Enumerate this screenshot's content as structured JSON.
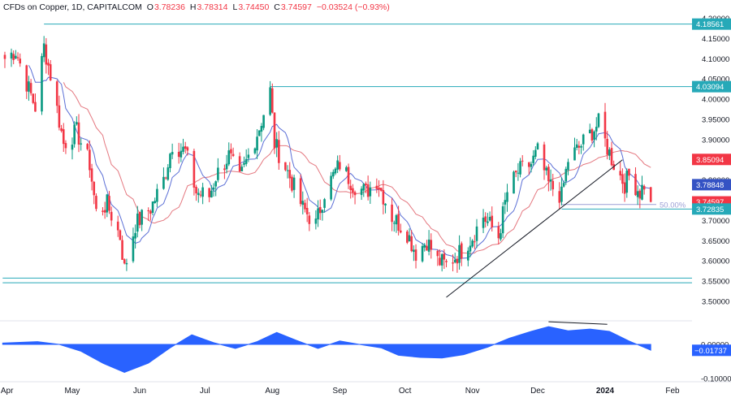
{
  "header": {
    "title": "CFDs on Copper, 1D, CAPITALCOM",
    "o_label": "O",
    "o_value": "3.78236",
    "h_label": "H",
    "h_value": "3.78314",
    "l_label": "L",
    "l_value": "3.74450",
    "c_label": "C",
    "c_value": "3.74597",
    "change": "−0.03524 (−0.93%)"
  },
  "colors": {
    "up": "#089981",
    "down": "#f23645",
    "ma_fast": "#5b6fd6",
    "ma_slow": "#e4777f",
    "level": "#26a9b8",
    "fib": "#9c9fd6",
    "oscillator": "#2962ff",
    "trendline": "#131722"
  },
  "chart_data": [
    {
      "type": "candlestick",
      "instrument": "CFDs on Copper",
      "timeframe": "1D",
      "price_axis": {
        "ylim": [
          3.455,
          4.21
        ],
        "ticks": [
          "4.20000",
          "4.15000",
          "4.10000",
          "4.05000",
          "4.00000",
          "3.95000",
          "3.90000",
          "3.85000",
          "3.80000",
          "3.75000",
          "3.70000",
          "3.65000",
          "3.60000",
          "3.55000",
          "3.50000"
        ]
      },
      "x_axis": {
        "ticks": [
          {
            "label": "Apr",
            "date": "2023-04-01"
          },
          {
            "label": "May",
            "date": "2023-05-01"
          },
          {
            "label": "Jun",
            "date": "2023-06-01"
          },
          {
            "label": "Jul",
            "date": "2023-07-01"
          },
          {
            "label": "Aug",
            "date": "2023-08-01"
          },
          {
            "label": "Sep",
            "date": "2023-09-01"
          },
          {
            "label": "Oct",
            "date": "2023-10-01"
          },
          {
            "label": "Nov",
            "date": "2023-11-01"
          },
          {
            "label": "Dec",
            "date": "2023-12-01"
          },
          {
            "label": "2024",
            "date": "2024-01-01"
          },
          {
            "label": "Feb",
            "date": "2024-02-01"
          }
        ],
        "range": [
          "2023-03-30",
          "2024-02-12"
        ]
      },
      "close_path": [
        [
          "2023-03-31",
          4.1
        ],
        [
          "2023-04-05",
          4.12
        ],
        [
          "2023-04-10",
          4.04
        ],
        [
          "2023-04-14",
          3.98
        ],
        [
          "2023-04-18",
          4.13
        ],
        [
          "2023-04-21",
          4.06
        ],
        [
          "2023-04-27",
          3.89
        ],
        [
          "2023-05-03",
          3.92
        ],
        [
          "2023-05-09",
          3.84
        ],
        [
          "2023-05-12",
          3.72
        ],
        [
          "2023-05-17",
          3.74
        ],
        [
          "2023-05-23",
          3.66
        ],
        [
          "2023-05-25",
          3.58
        ],
        [
          "2023-05-30",
          3.69
        ],
        [
          "2023-06-06",
          3.73
        ],
        [
          "2023-06-12",
          3.8
        ],
        [
          "2023-06-16",
          3.89
        ],
        [
          "2023-06-22",
          3.87
        ],
        [
          "2023-06-27",
          3.77
        ],
        [
          "2023-07-03",
          3.76
        ],
        [
          "2023-07-06",
          3.81
        ],
        [
          "2023-07-12",
          3.86
        ],
        [
          "2023-07-17",
          3.8
        ],
        [
          "2023-07-21",
          3.86
        ],
        [
          "2023-07-26",
          3.93
        ],
        [
          "2023-07-31",
          4.02
        ],
        [
          "2023-08-02",
          3.89
        ],
        [
          "2023-08-08",
          3.82
        ],
        [
          "2023-08-15",
          3.73
        ],
        [
          "2023-08-21",
          3.69
        ],
        [
          "2023-08-25",
          3.77
        ],
        [
          "2023-09-01",
          3.84
        ],
        [
          "2023-09-07",
          3.79
        ],
        [
          "2023-09-13",
          3.77
        ],
        [
          "2023-09-18",
          3.8
        ],
        [
          "2023-09-25",
          3.71
        ],
        [
          "2023-10-02",
          3.67
        ],
        [
          "2023-10-06",
          3.62
        ],
        [
          "2023-10-11",
          3.65
        ],
        [
          "2023-10-16",
          3.6
        ],
        [
          "2023-10-20",
          3.59
        ],
        [
          "2023-10-26",
          3.62
        ],
        [
          "2023-11-01",
          3.66
        ],
        [
          "2023-11-06",
          3.71
        ],
        [
          "2023-11-13",
          3.66
        ],
        [
          "2023-11-17",
          3.77
        ],
        [
          "2023-11-22",
          3.82
        ],
        [
          "2023-11-28",
          3.84
        ],
        [
          "2023-12-01",
          3.87
        ],
        [
          "2023-12-06",
          3.79
        ],
        [
          "2023-12-12",
          3.76
        ],
        [
          "2023-12-15",
          3.85
        ],
        [
          "2023-12-20",
          3.88
        ],
        [
          "2023-12-26",
          3.92
        ],
        [
          "2023-12-29",
          3.94
        ],
        [
          "2024-01-02",
          3.88
        ],
        [
          "2024-01-05",
          3.84
        ],
        [
          "2024-01-10",
          3.79
        ],
        [
          "2024-01-12",
          3.81
        ],
        [
          "2024-01-17",
          3.77
        ],
        [
          "2024-01-19",
          3.79
        ],
        [
          "2024-01-22",
          3.746
        ]
      ],
      "last_bar": {
        "date": "2024-01-22",
        "open": 3.78236,
        "high": 3.78314,
        "low": 3.7445,
        "close": 3.74597
      },
      "horizontal_levels": [
        {
          "label": "4.18561",
          "value": 4.18561,
          "from": "2023-04-18"
        },
        {
          "label": "4.03094",
          "value": 4.03094,
          "from": "2023-07-31"
        },
        {
          "label": "3.72835",
          "value": 3.72835,
          "from": "2023-12-12"
        },
        {
          "value": 3.5575,
          "from": "2023-03-30"
        },
        {
          "value": 3.546,
          "from": "2023-03-30"
        }
      ],
      "fib_level": {
        "label": "50.00%",
        "value": 3.7395,
        "from": "2023-12-12"
      },
      "trendline": {
        "from": {
          "date": "2023-10-20",
          "value": 3.51
        },
        "to": {
          "date": "2024-01-09",
          "value": 3.85
        }
      },
      "price_labels": [
        {
          "text": "4.20000",
          "value": 4.2,
          "style": "tick"
        },
        {
          "text": "4.18561",
          "value": 4.18561,
          "style": "level"
        },
        {
          "text": "4.03094",
          "value": 4.03094,
          "style": "level"
        },
        {
          "text": "3.85094",
          "value": 3.85094,
          "style": "ma_slow"
        },
        {
          "text": "3.78848",
          "value": 3.78848,
          "style": "ma_fast"
        },
        {
          "text": "3.74597",
          "value": 3.74597,
          "style": "last"
        },
        {
          "text": "3.72835",
          "value": 3.72835,
          "style": "level"
        }
      ]
    },
    {
      "type": "area",
      "pane": "oscillator",
      "ylim": [
        -0.12,
        0.07
      ],
      "ticks": [
        "0.00000",
        "-0.10000"
      ],
      "last_value_label": "−0.01737",
      "last_value": -0.01737,
      "points": [
        [
          "2023-03-30",
          0.004
        ],
        [
          "2023-04-15",
          0.008
        ],
        [
          "2023-04-25",
          0.0
        ],
        [
          "2023-05-05",
          -0.02
        ],
        [
          "2023-05-15",
          -0.055
        ],
        [
          "2023-05-25",
          -0.082
        ],
        [
          "2023-06-05",
          -0.055
        ],
        [
          "2023-06-15",
          -0.01
        ],
        [
          "2023-06-25",
          0.028
        ],
        [
          "2023-07-05",
          0.005
        ],
        [
          "2023-07-15",
          -0.012
        ],
        [
          "2023-07-25",
          0.008
        ],
        [
          "2023-08-03",
          0.035
        ],
        [
          "2023-08-12",
          0.012
        ],
        [
          "2023-08-22",
          -0.012
        ],
        [
          "2023-09-01",
          0.01
        ],
        [
          "2023-09-10",
          0.0
        ],
        [
          "2023-09-20",
          -0.01
        ],
        [
          "2023-09-28",
          -0.032
        ],
        [
          "2023-10-08",
          -0.038
        ],
        [
          "2023-10-18",
          -0.04
        ],
        [
          "2023-10-28",
          -0.03
        ],
        [
          "2023-11-08",
          -0.008
        ],
        [
          "2023-11-18",
          0.018
        ],
        [
          "2023-11-28",
          0.038
        ],
        [
          "2023-12-06",
          0.052
        ],
        [
          "2023-12-15",
          0.04
        ],
        [
          "2023-12-25",
          0.045
        ],
        [
          "2024-01-03",
          0.038
        ],
        [
          "2024-01-12",
          0.01
        ],
        [
          "2024-01-22",
          -0.017
        ]
      ],
      "divergence_line": {
        "from": {
          "date": "2023-12-06",
          "value": 0.052
        },
        "to": {
          "date": "2024-01-02",
          "value": 0.047
        }
      }
    }
  ]
}
